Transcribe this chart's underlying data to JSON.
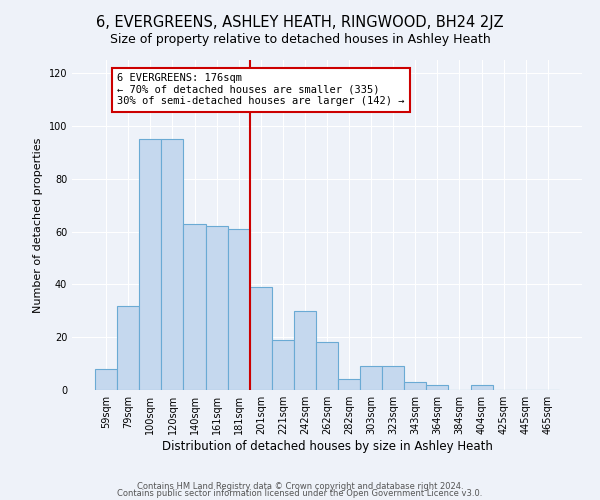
{
  "title": "6, EVERGREENS, ASHLEY HEATH, RINGWOOD, BH24 2JZ",
  "subtitle": "Size of property relative to detached houses in Ashley Heath",
  "xlabel": "Distribution of detached houses by size in Ashley Heath",
  "ylabel": "Number of detached properties",
  "bar_labels": [
    "59sqm",
    "79sqm",
    "100sqm",
    "120sqm",
    "140sqm",
    "161sqm",
    "181sqm",
    "201sqm",
    "221sqm",
    "242sqm",
    "262sqm",
    "282sqm",
    "303sqm",
    "323sqm",
    "343sqm",
    "364sqm",
    "384sqm",
    "404sqm",
    "425sqm",
    "445sqm",
    "465sqm"
  ],
  "bar_values": [
    8,
    32,
    95,
    95,
    63,
    62,
    61,
    39,
    19,
    30,
    18,
    4,
    9,
    9,
    3,
    2,
    0,
    2,
    0,
    0,
    0
  ],
  "bar_color": "#c5d8ee",
  "bar_edge_color": "#6aaad4",
  "vline_color": "#cc0000",
  "vline_x_index": 6,
  "annotation_title": "6 EVERGREENS: 176sqm",
  "annotation_line1": "← 70% of detached houses are smaller (335)",
  "annotation_line2": "30% of semi-detached houses are larger (142) →",
  "annotation_box_color": "#ffffff",
  "annotation_box_edge": "#cc0000",
  "ylim": [
    0,
    125
  ],
  "yticks": [
    0,
    20,
    40,
    60,
    80,
    100,
    120
  ],
  "footnote1": "Contains HM Land Registry data © Crown copyright and database right 2024.",
  "footnote2": "Contains public sector information licensed under the Open Government Licence v3.0.",
  "bg_color": "#eef2f9",
  "plot_bg_color": "#eef2f9",
  "title_fontsize": 10.5,
  "xlabel_fontsize": 8.5,
  "ylabel_fontsize": 8,
  "tick_fontsize": 7,
  "footnote_fontsize": 6,
  "annotation_fontsize": 7.5,
  "grid_color": "#ffffff"
}
